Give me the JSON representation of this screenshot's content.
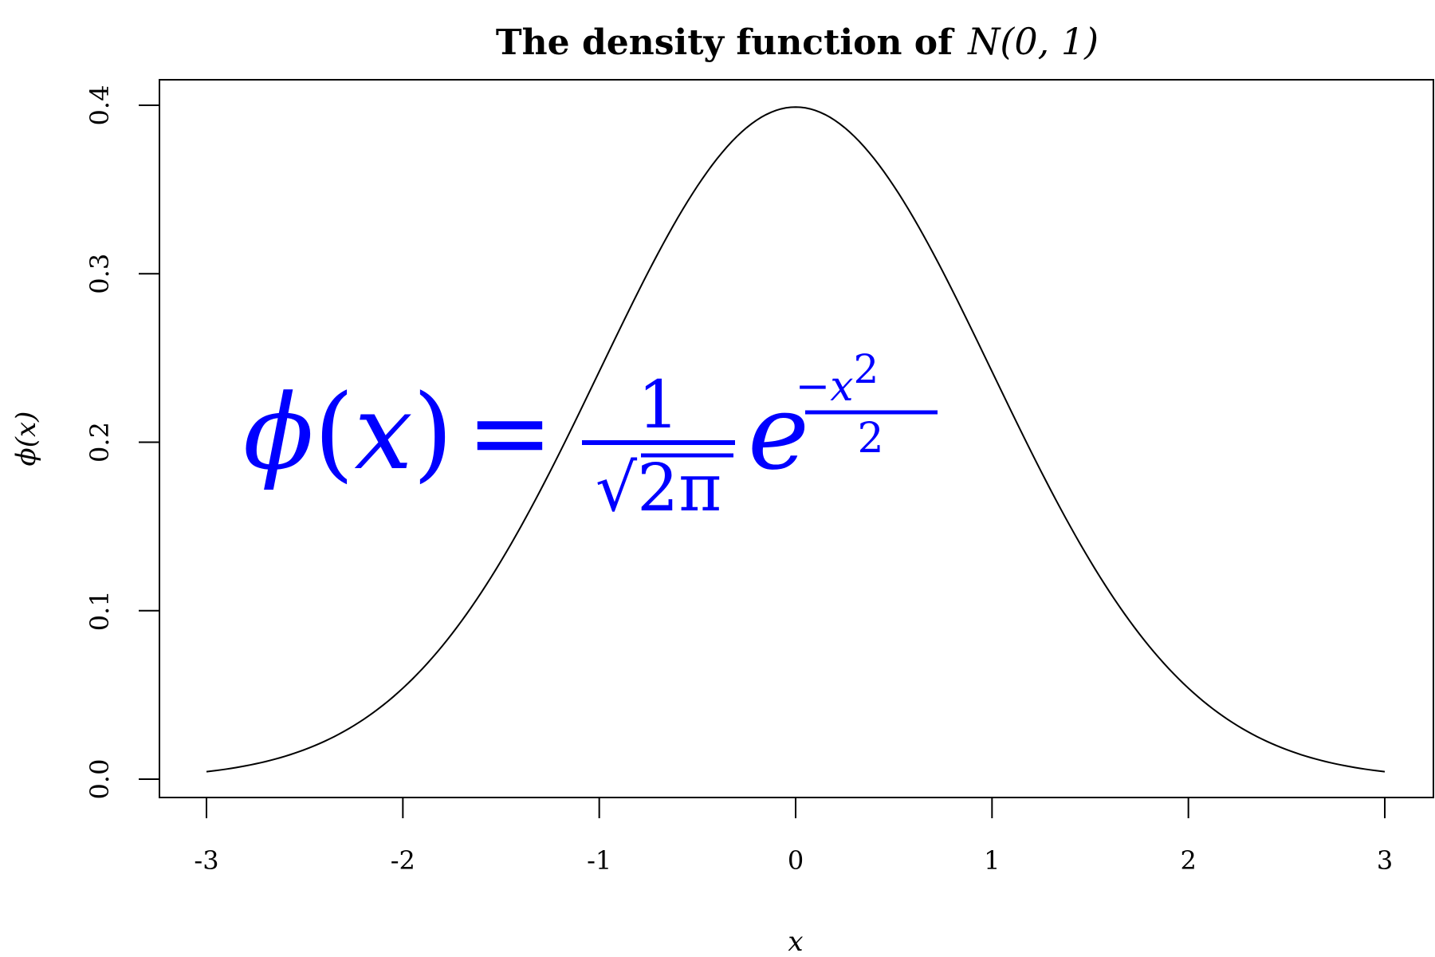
{
  "chart_data": {
    "type": "line",
    "title": "The density function of",
    "title_math": "N(0, 1)",
    "xlabel": "x",
    "ylabel": "ϕ(x)",
    "xlim": [
      -3,
      3
    ],
    "ylim": [
      0,
      0.4
    ],
    "x_ticks": [
      -3,
      -2,
      -1,
      0,
      1,
      2,
      3
    ],
    "x_tick_labels": [
      "-3",
      "-2",
      "-1",
      "0",
      "1",
      "2",
      "3"
    ],
    "y_ticks": [
      0,
      0.1,
      0.2,
      0.3,
      0.4
    ],
    "y_tick_labels": [
      "0.0",
      "0.1",
      "0.2",
      "0.3",
      "0.4"
    ],
    "series": [
      {
        "name": "phi(x)",
        "color": "#000000",
        "x": [
          -3.0,
          -2.75,
          -2.5,
          -2.25,
          -2.0,
          -1.75,
          -1.5,
          -1.25,
          -1.0,
          -0.75,
          -0.5,
          -0.25,
          0.0,
          0.25,
          0.5,
          0.75,
          1.0,
          1.25,
          1.5,
          1.75,
          2.0,
          2.25,
          2.5,
          2.75,
          3.0
        ],
        "values": [
          0.0044,
          0.0091,
          0.0175,
          0.0317,
          0.054,
          0.0863,
          0.1295,
          0.1826,
          0.242,
          0.3011,
          0.3521,
          0.3867,
          0.3989,
          0.3867,
          0.3521,
          0.3011,
          0.242,
          0.1826,
          0.1295,
          0.0863,
          0.054,
          0.0317,
          0.0175,
          0.0091,
          0.0044
        ]
      }
    ],
    "annotation": {
      "color": "#0000ff",
      "lhs_symbol": "ϕ",
      "lhs_open": "(",
      "lhs_var": "x",
      "lhs_close": ")",
      "equals": "=",
      "numerator": "1",
      "sqrt_symbol": "√",
      "denominator": "2π",
      "base": "e",
      "exp_numerator": "−x",
      "exp_power": "2",
      "exp_denominator": "2"
    }
  }
}
